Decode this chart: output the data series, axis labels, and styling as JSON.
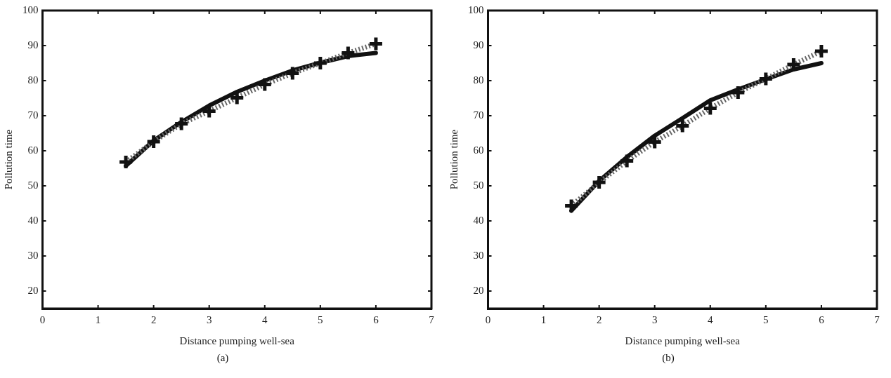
{
  "chart_data": [
    {
      "type": "line",
      "xlabel": "Distance pumping well-sea",
      "ylabel": "Pollution time",
      "annotations": [
        "(a)"
      ],
      "xlim": [
        0,
        7
      ],
      "xticks": [
        0,
        1,
        2,
        3,
        4,
        5,
        6,
        7
      ],
      "ylim": [
        15,
        100
      ],
      "yticks": [
        20,
        30,
        40,
        50,
        60,
        70,
        80,
        90,
        100
      ],
      "grid": false,
      "legend": false,
      "series": [
        {
          "color": "#111111",
          "x": [
            1.5,
            2,
            2.5,
            3,
            3.5,
            4,
            4.5,
            5,
            5.5,
            6
          ],
          "values": [
            55.7,
            62.9,
            68.2,
            72.9,
            76.8,
            80,
            82.9,
            85.1,
            87,
            87.9
          ],
          "marker": "none",
          "line_style": "solid"
        },
        {
          "color": "#666666",
          "x": [
            1.5,
            2,
            2.5,
            3,
            3.5,
            4,
            4.5,
            5,
            5.5,
            6
          ],
          "values": [
            56.8,
            62.6,
            67.7,
            71.3,
            75.1,
            78.9,
            82.1,
            85,
            87.9,
            90.5
          ],
          "marker": "cross",
          "line_style": "dotted"
        }
      ]
    },
    {
      "type": "line",
      "xlabel": "Distance pumping well-sea",
      "ylabel": "Pollution time",
      "annotations": [
        "(b)"
      ],
      "xlim": [
        0,
        7
      ],
      "xticks": [
        0,
        1,
        2,
        3,
        4,
        5,
        6,
        7
      ],
      "ylim": [
        15,
        100
      ],
      "yticks": [
        20,
        30,
        40,
        50,
        60,
        70,
        80,
        90,
        100
      ],
      "grid": false,
      "legend": false,
      "series": [
        {
          "color": "#111111",
          "x": [
            1.5,
            2,
            2.5,
            3,
            3.5,
            4,
            4.5,
            5,
            5.5,
            6
          ],
          "values": [
            42.9,
            51.4,
            58.2,
            64.3,
            69.3,
            74.4,
            77.5,
            80.4,
            83.2,
            85
          ],
          "marker": "none",
          "line_style": "solid"
        },
        {
          "color": "#666666",
          "x": [
            1.5,
            2,
            2.5,
            3,
            3.5,
            4,
            4.5,
            5,
            5.5,
            6
          ],
          "values": [
            44.3,
            51,
            57.1,
            62.5,
            67.1,
            72.1,
            76.6,
            80.5,
            84.6,
            88.4
          ],
          "marker": "cross",
          "line_style": "dotted"
        }
      ]
    }
  ]
}
